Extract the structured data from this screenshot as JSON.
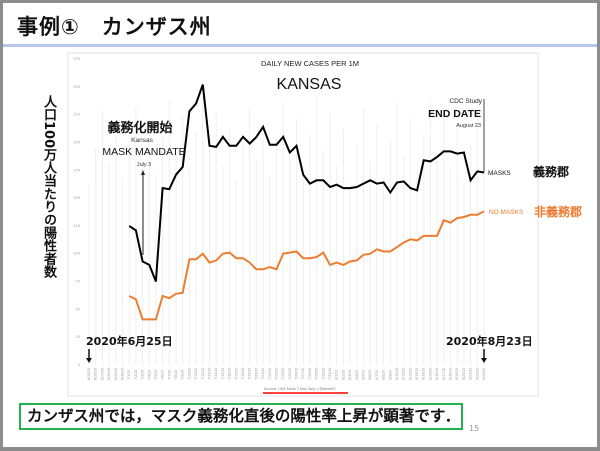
{
  "slide": {
    "title": "事例①　カンザス州",
    "note": "カンザス州では，マスク義務化直後の陽性率上昇が顕著です．",
    "page_number": "15",
    "y_axis_label_ja": "人口100万人当たりの陽性者数",
    "start_date_label": "2020年6月25日",
    "end_date_label": "2020年8月23日",
    "colors": {
      "title_rule": "#b4c7e7",
      "note_border": "#22b14c",
      "masks": "#000000",
      "no_masks": "#ed7d31",
      "source_underline": "#ff0000"
    }
  },
  "chart_data": {
    "type": "line",
    "subtitle": "DAILY NEW CASES PER 1M",
    "title": "KANSAS",
    "source": "Source: USA Facts 7 Day Avg. / @wero5C",
    "ylim": [
      0,
      275
    ],
    "yticks": [
      0,
      25,
      50,
      75,
      100,
      125,
      150,
      175,
      200,
      225,
      250,
      275
    ],
    "grid": false,
    "x_tick_labels": [
      "6/25/20",
      "6/26/20",
      "6/27/20",
      "6/28/20",
      "6/29/20",
      "6/30/20",
      "7/1/20",
      "7/2/20",
      "7/3/20",
      "7/4/20",
      "7/5/20",
      "7/6/20",
      "7/7/20",
      "7/8/20",
      "7/9/20",
      "7/10/20",
      "7/11/20",
      "7/12/20",
      "7/13/20",
      "7/14/20",
      "7/15/20",
      "7/16/20",
      "7/17/20",
      "7/18/20",
      "7/19/20",
      "7/20/20",
      "7/21/20",
      "7/22/20",
      "7/23/20",
      "7/24/20",
      "7/25/20",
      "7/26/20",
      "7/27/20",
      "7/28/20",
      "7/29/20",
      "7/30/20",
      "7/31/20",
      "8/1/20",
      "8/2/20",
      "8/3/20",
      "8/4/20",
      "8/5/20",
      "8/6/20",
      "8/7/20",
      "8/8/20",
      "8/9/20",
      "8/10/20",
      "8/11/20",
      "8/12/20",
      "8/13/20",
      "8/14/20",
      "8/15/20",
      "8/16/20",
      "8/17/20",
      "8/18/20",
      "8/19/20",
      "8/20/20",
      "8/21/20",
      "8/22/20",
      "8/23/20"
    ],
    "series": [
      {
        "name": "MASKS",
        "name_ja": "義務郡",
        "start": "7/1/20",
        "values": [
          125,
          121,
          93,
          90,
          75,
          159,
          158,
          171,
          178,
          228,
          235,
          252,
          197,
          196,
          205,
          197,
          197,
          205,
          199,
          205,
          214,
          198,
          198,
          205,
          191,
          197,
          171,
          163,
          166,
          166,
          160,
          162,
          159,
          159,
          160,
          163,
          166,
          163,
          164,
          155,
          164,
          165,
          159,
          157,
          184,
          183,
          187,
          192,
          192,
          190,
          191,
          166,
          174,
          173
        ]
      },
      {
        "name": "NO MASKS",
        "name_ja": "非義務郡",
        "start": "7/1/20",
        "values": [
          62,
          59,
          41,
          41,
          41,
          62,
          60,
          64,
          65,
          95,
          95,
          100,
          92,
          94,
          100,
          101,
          96,
          96,
          92,
          86,
          86,
          88,
          86,
          100,
          101,
          102,
          96,
          96,
          97,
          101,
          90,
          92,
          90,
          93,
          94,
          99,
          100,
          104,
          102,
          102,
          106,
          110,
          113,
          112,
          116,
          116,
          116,
          130,
          128,
          132,
          133,
          135,
          135,
          138
        ]
      }
    ],
    "annotations": {
      "mandate_ja": "義務化開始",
      "mandate_line1": "Kansas",
      "mandate_line2": "MASK MANDATE",
      "mandate_date": "July 3",
      "end_line1": "CDC Study",
      "end_line2": "END DATE",
      "end_date": "August 23"
    }
  }
}
